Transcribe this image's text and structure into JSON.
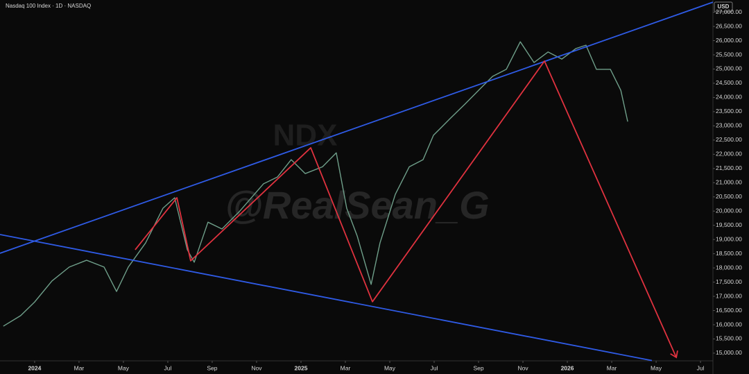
{
  "chart_data": {
    "type": "line",
    "title": "Nasdaq 100 Index · 1D · NASDAQ",
    "currency": "USD",
    "watermarks": [
      "NDX",
      "@RealSean_G"
    ],
    "x": [
      -1.41,
      -0.63,
      0,
      0.78,
      1.56,
      2.34,
      3.13,
      3.69,
      4.22,
      5,
      5.78,
      6.31,
      6.88,
      7.19,
      7.81,
      8.44,
      9.22,
      10.31,
      10.94,
      11.56,
      12.19,
      12.97,
      13.59,
      14.06,
      14.53,
      15.16,
      15.56,
      16.25,
      16.88,
      17.5,
      17.97,
      18.75,
      19.38,
      20,
      20.63,
      21.25,
      21.88,
      22.5,
      23.13,
      23.75,
      24.38,
      24.84,
      25.31,
      25.94,
      26.41,
      26.72
    ],
    "series": [
      {
        "color": "#6f9f8a",
        "values": [
          15950,
          16320,
          16800,
          17540,
          18030,
          18270,
          18030,
          17170,
          18030,
          18880,
          20100,
          20470,
          18640,
          18200,
          19610,
          19370,
          19980,
          20960,
          21200,
          21810,
          21320,
          21560,
          22050,
          20100,
          19130,
          17420,
          18880,
          20590,
          21560,
          21810,
          22670,
          23280,
          23760,
          24250,
          24740,
          24990,
          25960,
          25230,
          25600,
          25350,
          25720,
          25840,
          24990,
          24990,
          24250,
          23150
        ]
      }
    ],
    "overlays": [
      {
        "color": "#2f5be6",
        "x": [
          -1.56,
          30.56
        ],
        "values": [
          18516,
          27354
        ]
      },
      {
        "color": "#2f5be6",
        "x": [
          -1.56,
          27.81
        ],
        "values": [
          19175,
          14740
        ]
      },
      {
        "color": "#e0323f",
        "x": [
          4.53,
          6.41,
          7.03,
          12.44,
          15.22,
          22.97,
          28.91
        ],
        "values": [
          18640,
          20470,
          18250,
          22230,
          16810,
          25280,
          14850
        ]
      }
    ],
    "xlim": [
      -1.56,
      30.56
    ],
    "ylim": [
      14730,
      27430
    ],
    "xticks": [
      {
        "value": 0,
        "label": "2024"
      },
      {
        "value": 2,
        "label": "Mar"
      },
      {
        "value": 4,
        "label": "May"
      },
      {
        "value": 6,
        "label": "Jul"
      },
      {
        "value": 8,
        "label": "Sep"
      },
      {
        "value": 10,
        "label": "Nov"
      },
      {
        "value": 12,
        "label": "2025"
      },
      {
        "value": 14,
        "label": "Mar"
      },
      {
        "value": 16,
        "label": "May"
      },
      {
        "value": 18,
        "label": "Jul"
      },
      {
        "value": 20,
        "label": "Sep"
      },
      {
        "value": 22,
        "label": "Nov"
      },
      {
        "value": 24,
        "label": "2026"
      },
      {
        "value": 26,
        "label": "Mar"
      },
      {
        "value": 28,
        "label": "May"
      },
      {
        "value": 30,
        "label": "Jul"
      }
    ],
    "yticks": [
      {
        "value": 15000,
        "label": "15,000.00"
      },
      {
        "value": 15500,
        "label": "15,500.00"
      },
      {
        "value": 16000,
        "label": "16,000.00"
      },
      {
        "value": 16500,
        "label": "16,500.00"
      },
      {
        "value": 17000,
        "label": "17,000.00"
      },
      {
        "value": 17500,
        "label": "17,500.00"
      },
      {
        "value": 18000,
        "label": "18,000.00"
      },
      {
        "value": 18500,
        "label": "18,500.00"
      },
      {
        "value": 19000,
        "label": "19,000.00"
      },
      {
        "value": 19500,
        "label": "19,500.00"
      },
      {
        "value": 20000,
        "label": "20,000.00"
      },
      {
        "value": 20500,
        "label": "20,500.00"
      },
      {
        "value": 21000,
        "label": "21,000.00"
      },
      {
        "value": 21500,
        "label": "21,500.00"
      },
      {
        "value": 22000,
        "label": "22,000.00"
      },
      {
        "value": 22500,
        "label": "22,500.00"
      },
      {
        "value": 23000,
        "label": "23,000.00"
      },
      {
        "value": 23500,
        "label": "23,500.00"
      },
      {
        "value": 24000,
        "label": "24,000.00"
      },
      {
        "value": 24500,
        "label": "24,500.00"
      },
      {
        "value": 25000,
        "label": "25,000.00"
      },
      {
        "value": 25500,
        "label": "25,500.00"
      },
      {
        "value": 26000,
        "label": "26,000.00"
      },
      {
        "value": 26500,
        "label": "26,500.00"
      },
      {
        "value": 27000,
        "label": "27,000.00"
      }
    ],
    "grid": false
  }
}
